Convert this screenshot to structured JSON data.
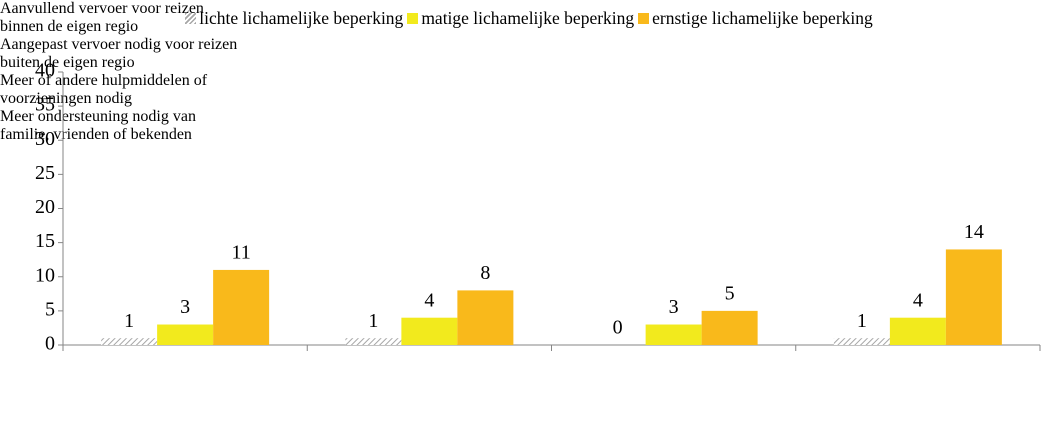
{
  "chart_data": {
    "type": "bar",
    "categories": [
      "Aanvullend vervoer voor reizen binnen de eigen regio",
      "Aangepast vervoer nodig voor reizen buiten de eigen regio",
      "Meer of andere hulpmiddelen of voorzieningen nodig",
      "Meer ondersteuning nodig van familie, vrienden of bekenden"
    ],
    "series": [
      {
        "name": "lichte lichamelijke beperking",
        "color": "#a6a6a6",
        "pattern": "hatch",
        "values": [
          1,
          1,
          0,
          1
        ]
      },
      {
        "name": "matige lichamelijke beperking",
        "color": "#f2ea1d",
        "values": [
          3,
          4,
          3,
          4
        ]
      },
      {
        "name": "ernstige lichamelijke beperking",
        "color": "#f9b91b",
        "values": [
          11,
          8,
          5,
          14
        ]
      }
    ],
    "ylim": [
      0,
      40
    ],
    "yticks": [
      0,
      5,
      10,
      15,
      20,
      25,
      30,
      35,
      40
    ],
    "grid": false,
    "legend": "top"
  }
}
